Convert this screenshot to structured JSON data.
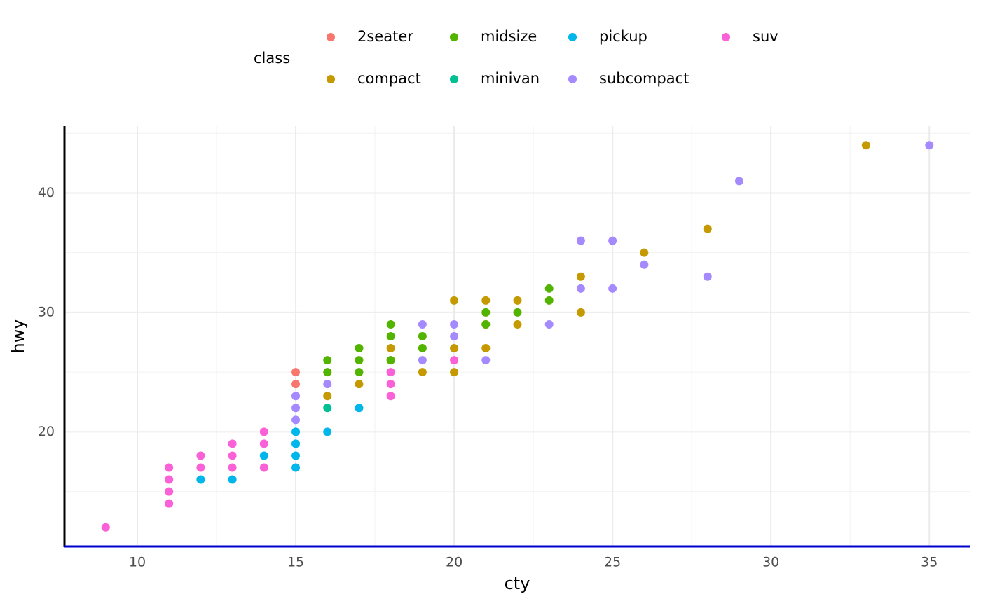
{
  "chart_data": {
    "type": "scatter",
    "x_label": "cty",
    "y_label": "hwy",
    "legend_title": "class",
    "xlim": [
      7.7,
      36.3
    ],
    "ylim": [
      10.4,
      45.6
    ],
    "xticks": [
      10,
      15,
      20,
      25,
      30,
      35
    ],
    "yticks": [
      20,
      30,
      40
    ],
    "xminor": [
      12.5,
      17.5,
      22.5,
      27.5,
      32.5
    ],
    "yminor": [
      15,
      25,
      35,
      45
    ],
    "grid": true,
    "legend_position": "top",
    "y_axis_color": "#000000",
    "x_axis_color": "#0000cc",
    "series": [
      {
        "name": "2seater",
        "color": "#F8766D",
        "x": [
          15,
          15
        ],
        "values": [
          25,
          24
        ]
      },
      {
        "name": "compact",
        "color": "#C49A00",
        "x": [
          33,
          28,
          26,
          24,
          24,
          22,
          22,
          21,
          21,
          21,
          20,
          20,
          20,
          19,
          18,
          18,
          17,
          16
        ],
        "values": [
          44,
          37,
          35,
          33,
          30,
          31,
          29,
          31,
          29,
          27,
          31,
          27,
          25,
          25,
          27,
          26,
          24,
          23
        ]
      },
      {
        "name": "midsize",
        "color": "#53B400",
        "x": [
          23,
          23,
          22,
          21,
          21,
          19,
          19,
          18,
          18,
          18,
          17,
          17,
          17,
          16,
          16
        ],
        "values": [
          32,
          31,
          30,
          30,
          29,
          28,
          27,
          29,
          28,
          26,
          27,
          26,
          25,
          26,
          25
        ]
      },
      {
        "name": "minivan",
        "color": "#00C094",
        "x": [
          16
        ],
        "values": [
          22
        ]
      },
      {
        "name": "pickup",
        "color": "#00B6EB",
        "x": [
          17,
          16,
          15,
          15,
          15,
          15,
          14,
          13,
          12
        ],
        "values": [
          22,
          20,
          20,
          19,
          18,
          17,
          18,
          16,
          16
        ]
      },
      {
        "name": "subcompact",
        "color": "#A58AFF",
        "x": [
          35,
          29,
          28,
          26,
          25,
          25,
          24,
          24,
          23,
          21,
          20,
          20,
          19,
          19,
          16,
          15,
          15,
          15
        ],
        "values": [
          44,
          41,
          33,
          34,
          36,
          32,
          36,
          32,
          29,
          26,
          29,
          28,
          29,
          26,
          24,
          23,
          22,
          21
        ]
      },
      {
        "name": "suv",
        "color": "#FB61D7",
        "x": [
          20,
          18,
          18,
          18,
          14,
          14,
          14,
          13,
          13,
          13,
          12,
          12,
          11,
          11,
          11,
          11,
          9
        ],
        "values": [
          26,
          25,
          24,
          23,
          20,
          19,
          17,
          19,
          18,
          17,
          18,
          17,
          17,
          16,
          15,
          14,
          12
        ]
      }
    ]
  }
}
